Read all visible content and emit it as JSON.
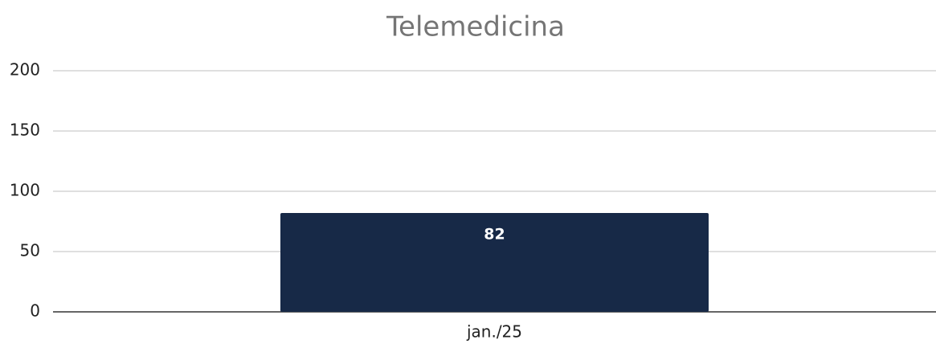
{
  "chart_data": {
    "type": "bar",
    "title": "Telemedicina",
    "categories": [
      "jan./25"
    ],
    "values": [
      82
    ],
    "color": "#172947",
    "ylim": [
      0,
      200
    ],
    "yticks": [
      0,
      50,
      100,
      150,
      200
    ],
    "grid": true,
    "data_labels": true
  }
}
